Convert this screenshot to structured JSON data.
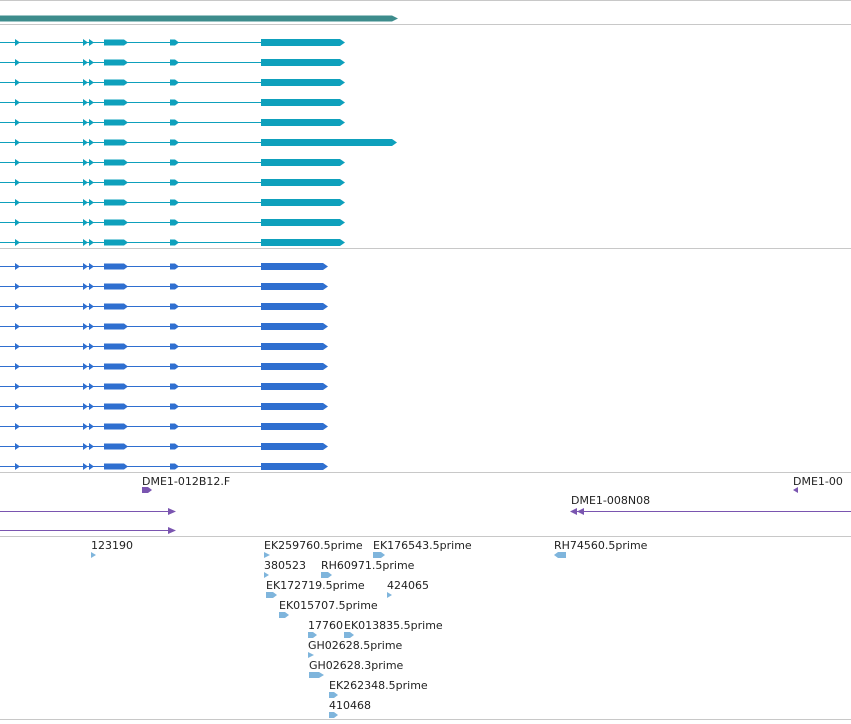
{
  "colors": {
    "background": "#ffffff",
    "track_divider": "#c8c8c8",
    "gene_summary": "#3d8c8c",
    "transcripts_set_a": "#0ea0bc",
    "transcripts_set_b": "#2f6fd0",
    "clone_ends": "#7a55b0",
    "est_features": "#7fb5dc",
    "label_text": "#222222"
  },
  "tracks": [
    {
      "name": "gene-summary-track"
    },
    {
      "name": "transcript-track-a",
      "rows": 11
    },
    {
      "name": "transcript-track-b",
      "rows": 11
    },
    {
      "name": "clone-end-track"
    },
    {
      "name": "est-track"
    }
  ],
  "clone_labels": {
    "dme1_012b12_f": "DME1-012B12.F",
    "dme1_00_partial": "DME1-00",
    "dme1_008n08": "DME1-008N08"
  },
  "est_labels": {
    "l123190": "123190",
    "ek259760": "EK259760.5prime",
    "ek176543": "EK176543.5prime",
    "rh74560": "RH74560.5prime",
    "l380523": "380523",
    "rh60971": "RH60971.5prime",
    "ek172719": "EK172719.5prime",
    "l424065": "424065",
    "ek015707": "EK015707.5prime",
    "l17760": "17760",
    "ek013835": "EK013835.5prime",
    "gh02628_5": "GH02628.5prime",
    "gh02628_3": "GH02628.3prime",
    "ek262348": "EK262348.5prime",
    "l410468": "410468"
  }
}
